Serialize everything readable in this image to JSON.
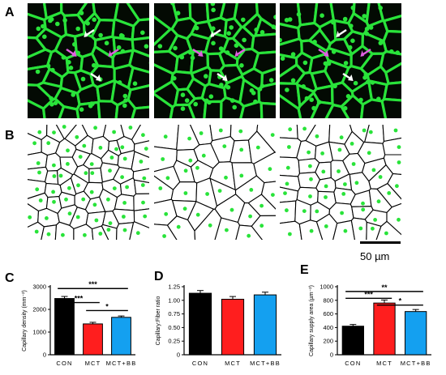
{
  "panel_letters": {
    "a": "A",
    "b": "B",
    "c": "C",
    "d": "D",
    "e": "E"
  },
  "scale_bar": {
    "label": "50 µm"
  },
  "colors": {
    "con": "#000000",
    "mct": "#ff1e1e",
    "mctbb": "#14a0f0",
    "capillary_green": "#29e33a",
    "arrow_white": "#ffffff",
    "arrow_magenta": "#e060e0"
  },
  "chart_data": [
    {
      "id": "C",
      "type": "bar",
      "ylabel": "Capillary density (mm⁻²)",
      "ylim": [
        0,
        3000
      ],
      "yticks": [
        "0",
        "1000",
        "2000",
        "3000"
      ],
      "ytick_values": [
        0,
        1000,
        2000,
        3000
      ],
      "categories": [
        "CON",
        "MCT",
        "MCT+BB"
      ],
      "values": [
        2480,
        1360,
        1650
      ],
      "errors": [
        90,
        70,
        60
      ],
      "significance": [
        {
          "from": 0,
          "to": 2,
          "label": "***",
          "level": 2920
        },
        {
          "from": 0,
          "to": 1,
          "label": "***",
          "level": 2300
        },
        {
          "from": 1,
          "to": 2,
          "label": "*",
          "level": 1950
        }
      ]
    },
    {
      "id": "D",
      "type": "bar",
      "ylabel": "Capillary:Fiber ratio",
      "ylim": [
        0,
        1.25
      ],
      "yticks": [
        "0",
        "0.25",
        "0.50",
        "0.75",
        "1.00",
        "1.25"
      ],
      "ytick_values": [
        0,
        0.25,
        0.5,
        0.75,
        1.0,
        1.25
      ],
      "categories": [
        "CON",
        "MCT",
        "MCT+BB"
      ],
      "values": [
        1.13,
        1.02,
        1.1
      ],
      "errors": [
        0.05,
        0.05,
        0.05
      ],
      "significance": []
    },
    {
      "id": "E",
      "type": "bar",
      "ylabel": "Capillary supply area (µm⁻²)",
      "ylim": [
        0,
        1000
      ],
      "yticks": [
        "0",
        "200",
        "400",
        "600",
        "800",
        "1000"
      ],
      "ytick_values": [
        0,
        200,
        400,
        600,
        800,
        1000
      ],
      "categories": [
        "CON",
        "MCT",
        "MCT+BB"
      ],
      "values": [
        420,
        760,
        635
      ],
      "errors": [
        25,
        45,
        30
      ],
      "significance": [
        {
          "from": 0,
          "to": 2,
          "label": "**",
          "level": 930
        },
        {
          "from": 0,
          "to": 1,
          "label": "***",
          "level": 830
        },
        {
          "from": 1,
          "to": 2,
          "label": "*",
          "level": 730
        }
      ]
    }
  ]
}
